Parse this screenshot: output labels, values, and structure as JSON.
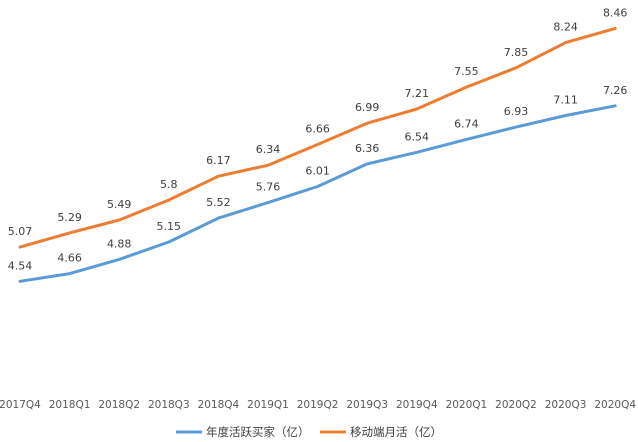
{
  "chart_data": {
    "type": "line",
    "categories": [
      "2017Q4",
      "2018Q1",
      "2018Q2",
      "2018Q3",
      "2018Q4",
      "2019Q1",
      "2019Q2",
      "2019Q3",
      "2019Q4",
      "2020Q1",
      "2020Q2",
      "2020Q3",
      "2020Q4"
    ],
    "series": [
      {
        "name": "年度活跃买家（亿）",
        "color": "#5b9bd5",
        "values": [
          4.54,
          4.66,
          4.88,
          5.15,
          5.52,
          5.76,
          6.01,
          6.36,
          6.54,
          6.74,
          6.93,
          7.11,
          7.26
        ]
      },
      {
        "name": "移动端月活（亿）",
        "color": "#ed7d31",
        "values": [
          5.07,
          5.29,
          5.49,
          5.8,
          6.17,
          6.34,
          6.66,
          6.99,
          7.21,
          7.55,
          7.85,
          8.24,
          8.46
        ]
      }
    ],
    "ylim": [
      2.05,
      8.9
    ],
    "legend_position": "bottom",
    "grid": false
  }
}
